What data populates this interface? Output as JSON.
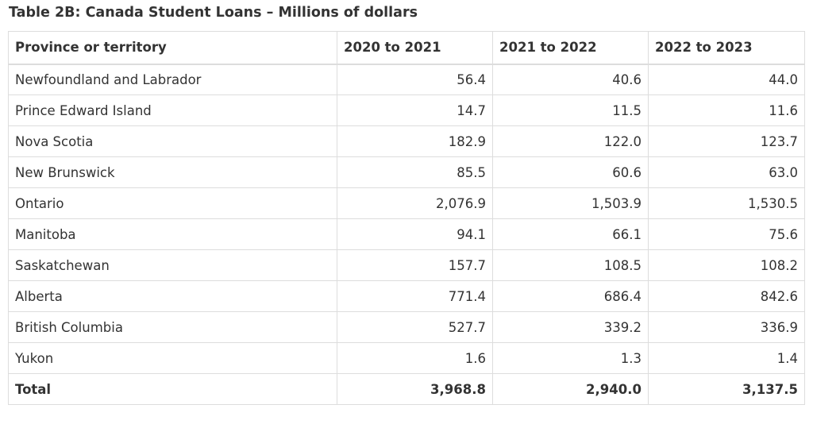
{
  "caption": "Table 2B: Canada Student Loans – Millions of dollars",
  "table": {
    "headers": [
      "Province or territory",
      "2020 to 2021",
      "2021 to 2022",
      "2022 to 2023"
    ],
    "rows": [
      [
        "Newfoundland and Labrador",
        "56.4",
        "40.6",
        "44.0"
      ],
      [
        "Prince Edward Island",
        "14.7",
        "11.5",
        "11.6"
      ],
      [
        "Nova Scotia",
        "182.9",
        "122.0",
        "123.7"
      ],
      [
        "New Brunswick",
        "85.5",
        "60.6",
        "63.0"
      ],
      [
        "Ontario",
        "2,076.9",
        "1,503.9",
        "1,530.5"
      ],
      [
        "Manitoba",
        "94.1",
        "66.1",
        "75.6"
      ],
      [
        "Saskatchewan",
        "157.7",
        "108.5",
        "108.2"
      ],
      [
        "Alberta",
        "771.4",
        "686.4",
        "842.6"
      ],
      [
        "British Columbia",
        "527.7",
        "339.2",
        "336.9"
      ],
      [
        "Yukon",
        "1.6",
        "1.3",
        "1.4"
      ]
    ],
    "total": [
      "Total",
      "3,968.8",
      "2,940.0",
      "3,137.5"
    ]
  }
}
